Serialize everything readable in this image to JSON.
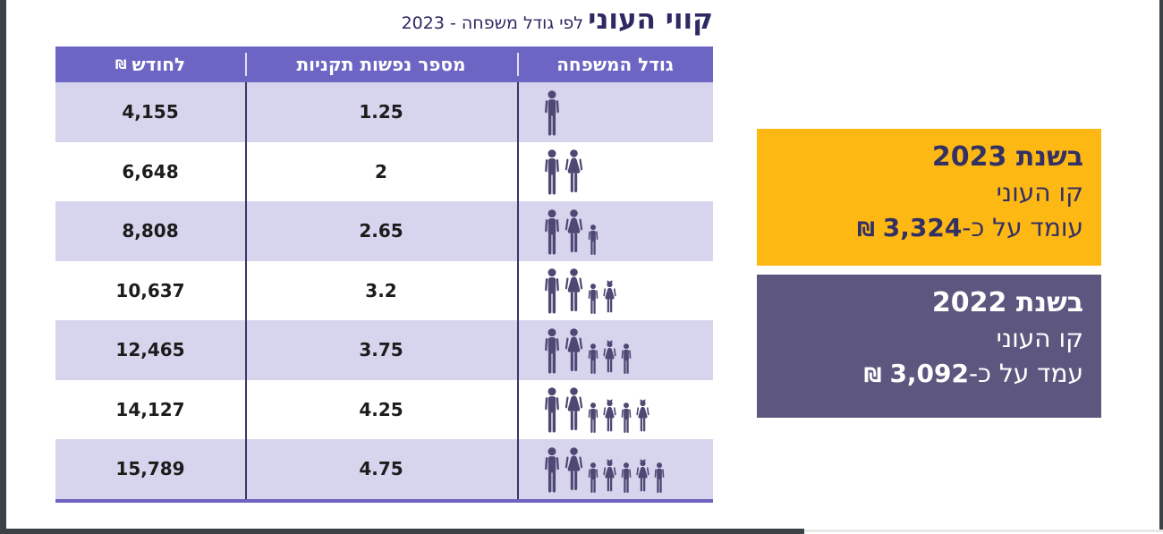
{
  "page": {
    "title_main": "קווי העוני",
    "title_suffix": "לפי גודל משפחה - 2023"
  },
  "table": {
    "headers": {
      "family": "גודל המשפחה",
      "persons": "מספר נפשות תקניות",
      "amount_currency": "₪",
      "amount_label": "לחודש"
    },
    "rows": [
      {
        "amount": "4,155",
        "persons": "1.25",
        "family": [
          "man"
        ]
      },
      {
        "amount": "6,648",
        "persons": "2",
        "family": [
          "man",
          "woman"
        ]
      },
      {
        "amount": "8,808",
        "persons": "2.65",
        "family": [
          "man",
          "woman",
          "boy"
        ]
      },
      {
        "amount": "10,637",
        "persons": "3.2",
        "family": [
          "man",
          "woman",
          "boy",
          "girl"
        ]
      },
      {
        "amount": "12,465",
        "persons": "3.75",
        "family": [
          "man",
          "woman",
          "boy",
          "girl",
          "boy"
        ]
      },
      {
        "amount": "14,127",
        "persons": "4.25",
        "family": [
          "man",
          "woman",
          "boy",
          "girl",
          "boy",
          "girl"
        ]
      },
      {
        "amount": "15,789",
        "persons": "4.75",
        "family": [
          "man",
          "woman",
          "boy",
          "girl",
          "boy",
          "girl",
          "boy"
        ]
      }
    ]
  },
  "callouts": [
    {
      "year_line": "בשנת 2023",
      "line2": "קו העוני",
      "line3_prefix": "עומד על כ-",
      "line3_amount": "3,324",
      "line3_currency": "₪"
    },
    {
      "year_line": "בשנת 2022",
      "line2": "קו העוני",
      "line3_prefix": "עמד על כ-",
      "line3_amount": "3,092",
      "line3_currency": "₪"
    }
  ],
  "colors": {
    "header_bg": "#6C65C4",
    "row_alt_bg": "#D7D4ED",
    "icon": "#4E4873",
    "accent_border": "#6C63C0",
    "title_text": "#2D2963",
    "callout_2023_bg": "#FDB813",
    "callout_2023_text": "#333064",
    "callout_2022_bg": "#5D5780",
    "callout_2022_text": "#FFFFFF",
    "frame_edge": "#3D4247"
  }
}
